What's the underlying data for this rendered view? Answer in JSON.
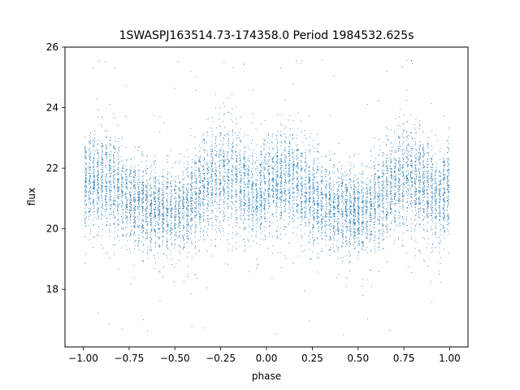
{
  "chart_data": {
    "type": "scatter",
    "title": "1SWASPJ163514.73-174358.0 Period 1984532.625s",
    "xlabel": "phase",
    "ylabel": "flux",
    "xlim": [
      -1.1,
      1.1
    ],
    "ylim": [
      16.1,
      26.0
    ],
    "x_ticks": [
      -1.0,
      -0.75,
      -0.5,
      -0.25,
      0.0,
      0.25,
      0.5,
      0.75,
      1.0
    ],
    "x_tick_labels": [
      "−1.00",
      "−0.75",
      "−0.50",
      "−0.25",
      "0.00",
      "0.25",
      "0.50",
      "0.75",
      "1.00"
    ],
    "y_ticks": [
      18,
      20,
      22,
      24,
      26
    ],
    "y_tick_labels": [
      "18",
      "20",
      "22",
      "24",
      "26"
    ],
    "grid": false,
    "marker_color": "#1f77b4",
    "series": [
      {
        "x_range": [
          -1.0,
          1.0
        ],
        "profile": [
          {
            "x": -1.0,
            "flux_center": 21.5,
            "flux_spread": 0.9
          },
          {
            "x": -0.9,
            "flux_center": 21.7,
            "flux_spread": 1.0
          },
          {
            "x": -0.75,
            "flux_center": 21.0,
            "flux_spread": 0.9
          },
          {
            "x": -0.6,
            "flux_center": 20.6,
            "flux_spread": 0.8
          },
          {
            "x": -0.45,
            "flux_center": 20.6,
            "flux_spread": 0.8
          },
          {
            "x": -0.3,
            "flux_center": 21.6,
            "flux_spread": 1.1
          },
          {
            "x": -0.2,
            "flux_center": 21.8,
            "flux_spread": 1.1
          },
          {
            "x": -0.05,
            "flux_center": 21.0,
            "flux_spread": 0.9
          },
          {
            "x": 0.0,
            "flux_center": 21.5,
            "flux_spread": 0.9
          },
          {
            "x": 0.1,
            "flux_center": 21.7,
            "flux_spread": 1.0
          },
          {
            "x": 0.25,
            "flux_center": 21.0,
            "flux_spread": 0.9
          },
          {
            "x": 0.4,
            "flux_center": 20.6,
            "flux_spread": 0.8
          },
          {
            "x": 0.55,
            "flux_center": 20.6,
            "flux_spread": 0.8
          },
          {
            "x": 0.7,
            "flux_center": 21.6,
            "flux_spread": 1.1
          },
          {
            "x": 0.8,
            "flux_center": 21.8,
            "flux_spread": 1.1
          },
          {
            "x": 0.95,
            "flux_center": 21.0,
            "flux_spread": 0.9
          },
          {
            "x": 1.0,
            "flux_center": 21.5,
            "flux_spread": 0.9
          }
        ],
        "flux_min": 16.5,
        "flux_max": 25.6
      }
    ]
  }
}
